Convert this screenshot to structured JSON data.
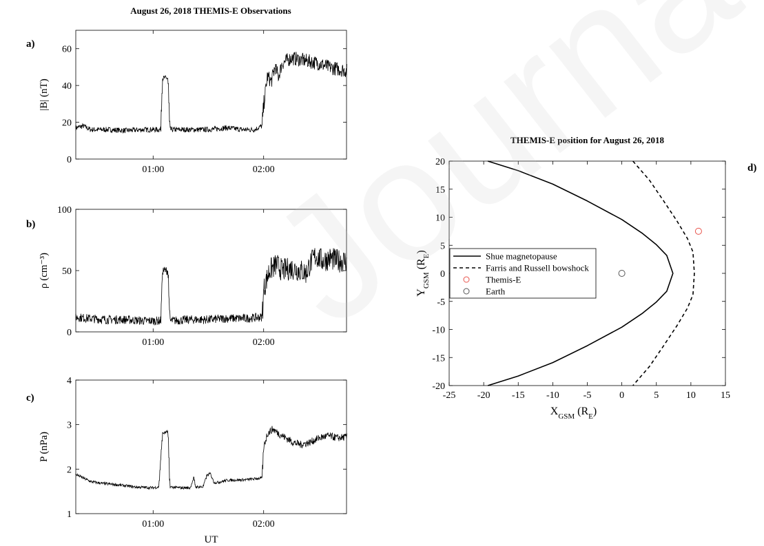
{
  "figure": {
    "title_left": "August 26, 2018 THEMIS-E Observations",
    "x_label_bottom": "UT",
    "watermark": "Journal Pre-proofs"
  },
  "chart_data": [
    {
      "type": "line",
      "panel": "a)",
      "ylabel": "|B| (nT)",
      "xlim": [
        "00:18",
        "02:45"
      ],
      "ylim": [
        0,
        70
      ],
      "yticks": [
        0,
        20,
        40,
        60
      ],
      "xticks": [
        "01:00",
        "02:00"
      ],
      "series": [
        {
          "points": [
            [
              "00:18",
              17
            ],
            [
              "00:22",
              18
            ],
            [
              "00:26",
              16
            ],
            [
              "00:35",
              16
            ],
            [
              "00:45",
              15.5
            ],
            [
              "00:55",
              16
            ],
            [
              "01:04",
              16
            ],
            [
              "01:05",
              44
            ],
            [
              "01:08",
              44
            ],
            [
              "01:09",
              16
            ],
            [
              "01:20",
              16
            ],
            [
              "01:30",
              16
            ],
            [
              "01:40",
              17
            ],
            [
              "01:48",
              16
            ],
            [
              "01:55",
              16
            ],
            [
              "01:59",
              18
            ],
            [
              "02:00",
              30
            ],
            [
              "02:02",
              45
            ],
            [
              "02:04",
              42
            ],
            [
              "02:06",
              50
            ],
            [
              "02:08",
              45
            ],
            [
              "02:10",
              52
            ],
            [
              "02:15",
              55
            ],
            [
              "02:20",
              54
            ],
            [
              "02:25",
              53
            ],
            [
              "02:30",
              52
            ],
            [
              "02:35",
              50
            ],
            [
              "02:40",
              49
            ],
            [
              "02:45",
              48
            ]
          ]
        }
      ]
    },
    {
      "type": "line",
      "panel": "b)",
      "ylabel": "ρ (cm⁻³)",
      "xlim": [
        "00:18",
        "02:45"
      ],
      "ylim": [
        0,
        100
      ],
      "yticks": [
        0,
        50,
        100
      ],
      "xticks": [
        "01:00",
        "02:00"
      ],
      "series": [
        {
          "points": [
            [
              "00:18",
              12
            ],
            [
              "00:25",
              11
            ],
            [
              "00:35",
              10
            ],
            [
              "00:45",
              10
            ],
            [
              "00:55",
              9
            ],
            [
              "01:04",
              9
            ],
            [
              "01:05",
              50
            ],
            [
              "01:08",
              50
            ],
            [
              "01:09",
              9
            ],
            [
              "01:20",
              10
            ],
            [
              "01:30",
              10
            ],
            [
              "01:40",
              11
            ],
            [
              "01:50",
              11
            ],
            [
              "01:59",
              12
            ],
            [
              "02:00",
              35
            ],
            [
              "02:03",
              50
            ],
            [
              "02:07",
              55
            ],
            [
              "02:10",
              50
            ],
            [
              "02:15",
              52
            ],
            [
              "02:20",
              50
            ],
            [
              "02:23",
              48
            ],
            [
              "02:25",
              55
            ],
            [
              "02:28",
              62
            ],
            [
              "02:32",
              58
            ],
            [
              "02:36",
              60
            ],
            [
              "02:40",
              58
            ],
            [
              "02:45",
              58
            ]
          ]
        }
      ]
    },
    {
      "type": "line",
      "panel": "c)",
      "ylabel": "P (nPa)",
      "xlabel": "UT",
      "xlim": [
        "00:18",
        "02:45"
      ],
      "ylim": [
        1,
        4
      ],
      "yticks": [
        1,
        2,
        3,
        4
      ],
      "xticks": [
        "01:00",
        "02:00"
      ],
      "series": [
        {
          "points": [
            [
              "00:18",
              1.88
            ],
            [
              "00:22",
              1.8
            ],
            [
              "00:26",
              1.72
            ],
            [
              "00:32",
              1.68
            ],
            [
              "00:40",
              1.65
            ],
            [
              "00:50",
              1.6
            ],
            [
              "01:00",
              1.58
            ],
            [
              "01:03",
              1.6
            ],
            [
              "01:05",
              2.8
            ],
            [
              "01:08",
              2.85
            ],
            [
              "01:09",
              1.6
            ],
            [
              "01:15",
              1.58
            ],
            [
              "01:20",
              1.58
            ],
            [
              "01:22",
              1.8
            ],
            [
              "01:23",
              1.6
            ],
            [
              "01:27",
              1.6
            ],
            [
              "01:29",
              1.85
            ],
            [
              "01:31",
              1.9
            ],
            [
              "01:33",
              1.7
            ],
            [
              "01:35",
              1.7
            ],
            [
              "01:40",
              1.75
            ],
            [
              "01:50",
              1.76
            ],
            [
              "01:59",
              1.8
            ],
            [
              "02:00",
              2.5
            ],
            [
              "02:02",
              2.8
            ],
            [
              "02:05",
              2.9
            ],
            [
              "02:08",
              2.8
            ],
            [
              "02:12",
              2.7
            ],
            [
              "02:16",
              2.6
            ],
            [
              "02:20",
              2.55
            ],
            [
              "02:25",
              2.6
            ],
            [
              "02:30",
              2.7
            ],
            [
              "02:35",
              2.75
            ],
            [
              "02:40",
              2.7
            ],
            [
              "02:45",
              2.72
            ]
          ]
        }
      ]
    },
    {
      "type": "line",
      "panel": "d)",
      "title": "THEMIS-E position for August 26, 2018",
      "xlabel": "X_GSM (R_E)",
      "ylabel": "Y_GSM (R_E)",
      "xlim": [
        -25,
        15
      ],
      "ylim": [
        -20,
        20
      ],
      "xticks": [
        -25,
        -20,
        -15,
        -10,
        -5,
        0,
        5,
        10,
        15
      ],
      "yticks": [
        -20,
        -15,
        -10,
        -5,
        0,
        5,
        10,
        15,
        20
      ],
      "legend": "center-left",
      "series": [
        {
          "name": "Shue magnetopause",
          "style": "solid",
          "color": "#000000",
          "x": [
            -19.4,
            -15,
            -10,
            -5,
            0,
            3,
            5,
            6.5,
            7.4,
            6.5,
            5,
            3,
            0,
            -5,
            -10,
            -15,
            -19.4
          ],
          "y": [
            20,
            18.3,
            15.9,
            12.9,
            9.6,
            7.1,
            5.1,
            3.2,
            0,
            -3.2,
            -5.1,
            -7.1,
            -9.6,
            -12.9,
            -15.9,
            -18.3,
            -20
          ]
        },
        {
          "name": "Farris and Russell bowshock",
          "style": "dashed",
          "color": "#000000",
          "x": [
            1.6,
            4,
            6,
            8,
            9.5,
            10.3,
            10.5,
            10.3,
            9.5,
            8,
            6,
            4,
            1.6
          ],
          "y": [
            20,
            16.6,
            13.0,
            9.3,
            6.2,
            3.8,
            0,
            -3.8,
            -6.2,
            -9.3,
            -13.0,
            -16.6,
            -20
          ]
        },
        {
          "name": "Themis-E",
          "style": "marker",
          "color": "#e8524a",
          "x": [
            11.1
          ],
          "y": [
            7.5
          ]
        },
        {
          "name": "Earth",
          "style": "marker",
          "color": "#555555",
          "x": [
            0
          ],
          "y": [
            0
          ]
        }
      ]
    }
  ]
}
